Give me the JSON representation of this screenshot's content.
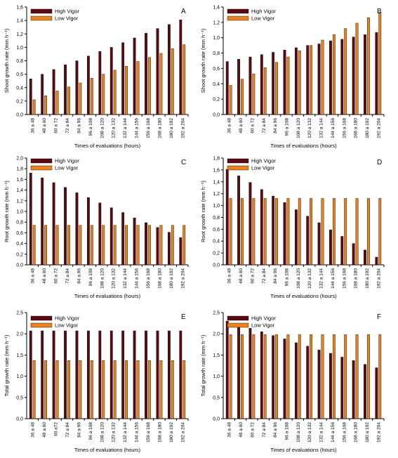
{
  "colors": {
    "high": "#5c0a12",
    "low": "#e8821e",
    "axis": "#000000"
  },
  "chart_data": [
    {
      "panel": "A",
      "type": "bar",
      "ylabel": "Shoot growth rate (mm h⁻¹)",
      "xlabel": "Times of evaluations (hours)",
      "ylim": [
        0,
        1.6
      ],
      "yticks": [
        "0,0",
        "0,2",
        "0,4",
        "0,6",
        "0,8",
        "1,0",
        "1,2",
        "1,4",
        "1,6"
      ],
      "categories": [
        "36 a 48",
        "48 a 60",
        "60 a 72",
        "72 a 84",
        "84 a 96",
        "96 a 108",
        "108 a 120",
        "120 a 132",
        "132 a 144",
        "144 a 156",
        "156 a 168",
        "168 a 180",
        "180 a 192",
        "192 a 204"
      ],
      "series": [
        {
          "name": "High Vigor",
          "values": [
            0.53,
            0.6,
            0.67,
            0.74,
            0.8,
            0.87,
            0.94,
            1.0,
            1.07,
            1.14,
            1.21,
            1.28,
            1.34,
            1.41
          ]
        },
        {
          "name": "Low Vigor",
          "values": [
            0.22,
            0.28,
            0.35,
            0.41,
            0.47,
            0.54,
            0.6,
            0.66,
            0.72,
            0.79,
            0.85,
            0.91,
            0.98,
            1.04
          ]
        }
      ]
    },
    {
      "panel": "B",
      "type": "bar",
      "ylabel": "Shoot growth rate (mm h⁻¹)",
      "xlabel": "Times of evaluations (hours)",
      "ylim": [
        0,
        1.4
      ],
      "yticks": [
        "0,0",
        "0,2",
        "0,4",
        "0,6",
        "0,8",
        "1,0",
        "1,2",
        "1,4"
      ],
      "categories": [
        "36 a 48",
        "48 a 60",
        "60 a 72",
        "72 a 84",
        "84 a 96",
        "96 a 108",
        "108 a 120",
        "120 a 132",
        "132 a 144",
        "144 a 156",
        "156 a 168",
        "168 a 180",
        "180 a 192",
        "192 a 204"
      ],
      "series": [
        {
          "name": "High Vigor",
          "values": [
            0.69,
            0.72,
            0.75,
            0.78,
            0.81,
            0.84,
            0.87,
            0.9,
            0.92,
            0.96,
            0.98,
            1.01,
            1.04,
            1.07
          ]
        },
        {
          "name": "Low Vigor",
          "values": [
            0.38,
            0.46,
            0.53,
            0.61,
            0.68,
            0.75,
            0.83,
            0.9,
            0.97,
            1.04,
            1.12,
            1.19,
            1.26,
            1.33
          ]
        }
      ]
    },
    {
      "panel": "C",
      "type": "bar",
      "ylabel": "Root growth rate (mm h⁻¹)",
      "xlabel": "Times of evaluations (hours)",
      "ylim": [
        0,
        2.0
      ],
      "yticks": [
        "0,0",
        "0,2",
        "0,4",
        "0,6",
        "0,8",
        "1,0",
        "1,2",
        "1,4",
        "1,6",
        "1,8",
        "2,0"
      ],
      "categories": [
        "36 a 48",
        "48 a 60",
        "60 a 72",
        "72 a 84",
        "84 a 96",
        "96 a 108",
        "108 a 120",
        "120 a 132",
        "132 a 144",
        "144 a 156",
        "156 a 168",
        "168 a 180",
        "180 a 192",
        "192 a 204"
      ],
      "series": [
        {
          "name": "High Vigor",
          "values": [
            1.72,
            1.63,
            1.54,
            1.45,
            1.35,
            1.26,
            1.16,
            1.07,
            0.98,
            0.88,
            0.79,
            0.7,
            0.61,
            0.51
          ]
        },
        {
          "name": "Low Vigor",
          "values": [
            0.74,
            0.74,
            0.74,
            0.74,
            0.74,
            0.74,
            0.74,
            0.74,
            0.74,
            0.74,
            0.74,
            0.74,
            0.74,
            0.74
          ]
        }
      ]
    },
    {
      "panel": "D",
      "type": "bar",
      "ylabel": "Root growth rate (mm h⁻¹)",
      "xlabel": "Times of evaluations (hours)",
      "ylim": [
        0,
        1.8
      ],
      "yticks": [
        "0,0",
        "0,2",
        "0,4",
        "0,6",
        "0,8",
        "1,0",
        "1,2",
        "1,4",
        "1,6",
        "1,8"
      ],
      "categories": [
        "36 a 48",
        "48 a 60",
        "60 a 72",
        "72 a 84",
        "84 a 96",
        "96 a 108",
        "108 a 120",
        "120 a 132",
        "132 a 144",
        "144 a 156",
        "156 a 168",
        "168 a 180",
        "180 a 192",
        "192 a 204"
      ],
      "series": [
        {
          "name": "High Vigor",
          "values": [
            1.61,
            1.5,
            1.39,
            1.27,
            1.16,
            1.05,
            0.93,
            0.82,
            0.71,
            0.59,
            0.48,
            0.36,
            0.25,
            0.13
          ]
        },
        {
          "name": "Low Vigor",
          "values": [
            1.12,
            1.12,
            1.12,
            1.12,
            1.12,
            1.12,
            1.12,
            1.12,
            1.12,
            1.12,
            1.12,
            1.12,
            1.12,
            1.12
          ]
        }
      ]
    },
    {
      "panel": "E",
      "type": "bar",
      "ylabel": "Total growth rate (mm h⁻¹)",
      "xlabel": "Times of evaluations (hours)",
      "ylim": [
        0,
        2.5
      ],
      "yticks": [
        "0,0",
        "0,5",
        "1,0",
        "1,5",
        "2,0",
        "2,5"
      ],
      "categories": [
        "36 a 48",
        "48 a 60",
        "60 a72",
        "72 a 84",
        "84 a 96",
        "96 a 108",
        "108 a 120",
        "120 a 132",
        "132 a 144",
        "144 a 156",
        "156 a 168",
        "168 a 180",
        "180 a 192",
        "192 a 204"
      ],
      "series": [
        {
          "name": "High Vigor",
          "values": [
            2.07,
            2.07,
            2.07,
            2.07,
            2.07,
            2.07,
            2.07,
            2.07,
            2.07,
            2.07,
            2.07,
            2.07,
            2.07,
            2.07
          ]
        },
        {
          "name": "Low Vigor",
          "values": [
            1.37,
            1.37,
            1.37,
            1.37,
            1.37,
            1.37,
            1.37,
            1.37,
            1.37,
            1.37,
            1.37,
            1.37,
            1.37,
            1.37
          ]
        }
      ]
    },
    {
      "panel": "F",
      "type": "bar",
      "ylabel": "Total growth rate (mm h⁻¹)",
      "xlabel": "Times of evaluations (hours)",
      "ylim": [
        0,
        2.5
      ],
      "yticks": [
        "0,0",
        "0,5",
        "1,0",
        "1,5",
        "2,0",
        "2,5"
      ],
      "categories": [
        "36 a 48",
        "48 a 60",
        "60 a 72",
        "72 a 84",
        "84 a 96",
        "96 a 108",
        "108 a 120",
        "120 a 132",
        "132 a 144",
        "144 a 156",
        "156 a 168",
        "168 a 180",
        "180 a 192",
        "192 a 204"
      ],
      "series": [
        {
          "name": "High Vigor",
          "values": [
            2.3,
            2.22,
            2.13,
            2.05,
            1.96,
            1.88,
            1.79,
            1.71,
            1.62,
            1.54,
            1.45,
            1.37,
            1.28,
            1.2
          ]
        },
        {
          "name": "Low Vigor",
          "values": [
            1.98,
            1.98,
            1.98,
            1.98,
            1.98,
            1.98,
            1.98,
            1.98,
            1.98,
            1.98,
            1.98,
            1.98,
            1.98,
            1.98
          ]
        }
      ]
    }
  ]
}
